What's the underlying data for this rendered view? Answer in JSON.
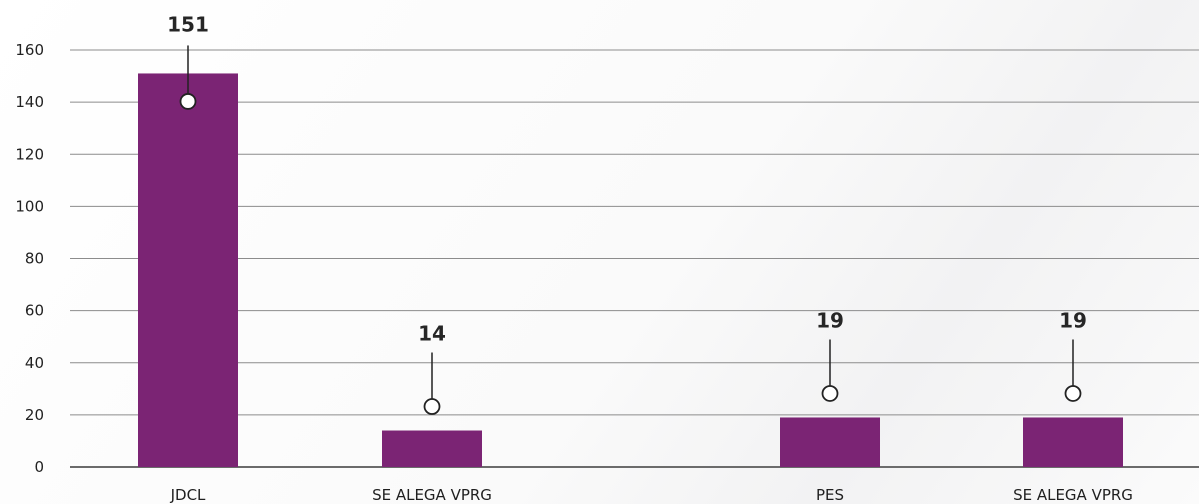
{
  "chart_data": {
    "type": "bar",
    "categories": [
      "JDCL",
      "SE ALEGA VPRG",
      "",
      "PES",
      "SE ALEGA VPRG"
    ],
    "values": [
      151,
      14,
      null,
      19,
      19
    ],
    "data_labels": [
      "151",
      "14",
      "",
      "19",
      "19"
    ],
    "ylim": [
      0,
      160
    ],
    "yticks": [
      0,
      20,
      40,
      60,
      80,
      100,
      120,
      140,
      160
    ],
    "grid": true,
    "legend": "none",
    "title": "",
    "xlabel": "",
    "ylabel": ""
  },
  "colors": {
    "bar": "#7b2474",
    "grid": "#8c8c8c",
    "axis": "#6b6b6b",
    "callout": "#222222"
  }
}
